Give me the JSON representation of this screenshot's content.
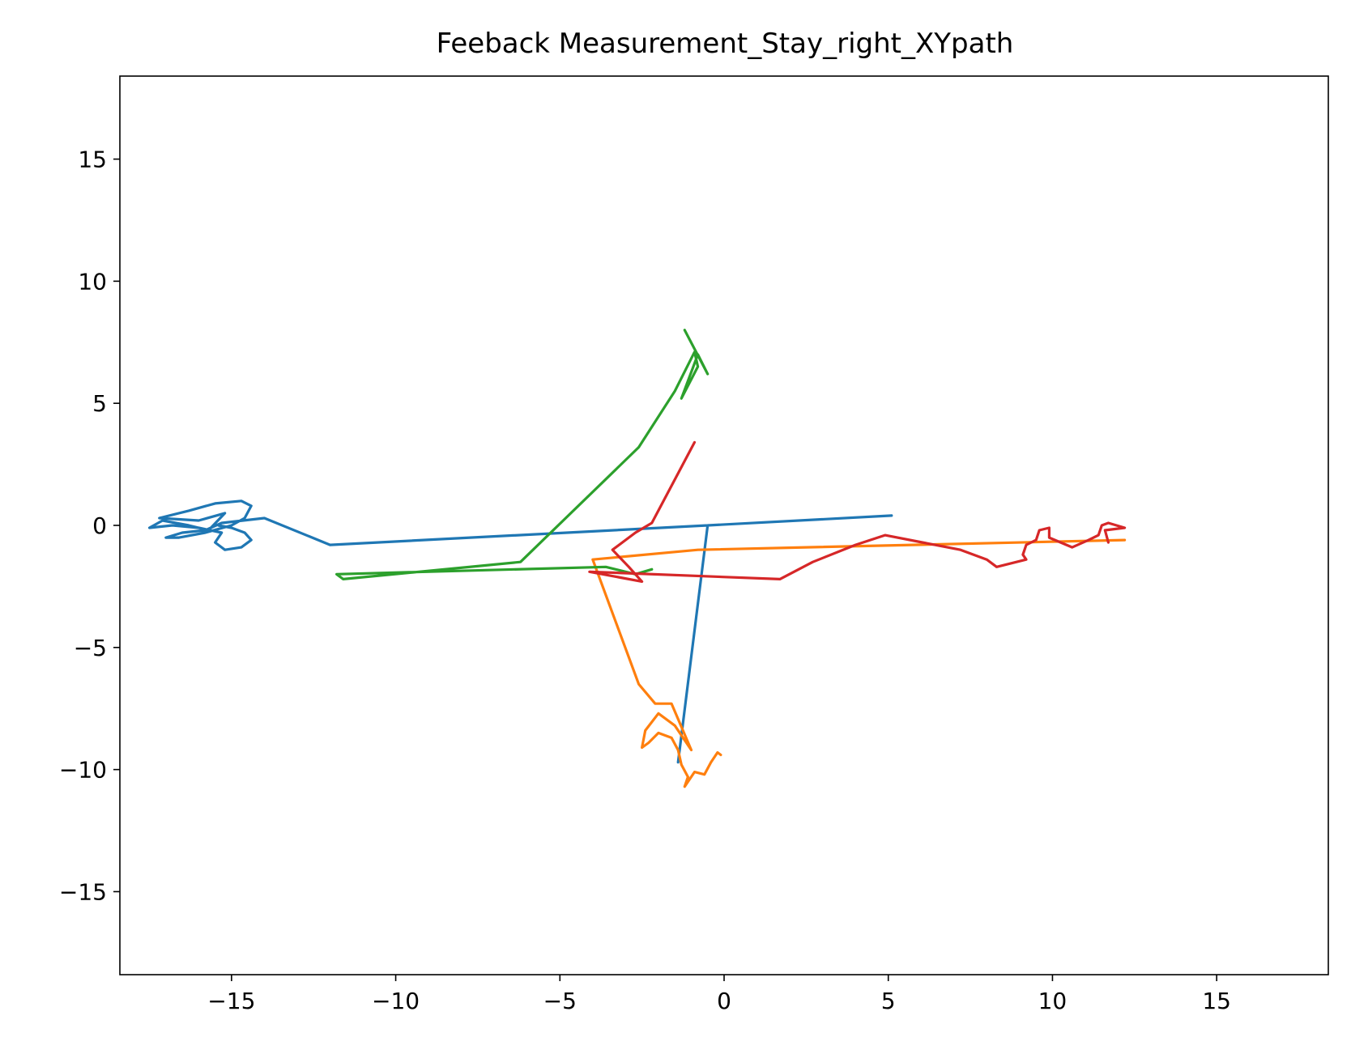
{
  "chart_data": {
    "type": "line",
    "title": "Feeback Measurement_Stay_right_XYpath",
    "xlabel": "",
    "ylabel": "",
    "xlim": [
      -18.4,
      18.4
    ],
    "ylim": [
      -18.4,
      18.4
    ],
    "xticks": [
      -15,
      -10,
      -5,
      0,
      5,
      10,
      15
    ],
    "yticks": [
      -15,
      -10,
      -5,
      0,
      5,
      10,
      15
    ],
    "xtick_labels": [
      "−15",
      "−10",
      "−5",
      "0",
      "5",
      "10",
      "15"
    ],
    "ytick_labels": [
      "−15",
      "−10",
      "−5",
      "0",
      "5",
      "10",
      "15"
    ],
    "grid": false,
    "series": [
      {
        "color": "#1f77b4",
        "points": [
          [
            5.1,
            0.4
          ],
          [
            -0.5,
            0
          ],
          [
            -1.4,
            -9.7
          ],
          [
            -0.5,
            0
          ],
          [
            -12,
            -0.8
          ],
          [
            -14,
            0.3
          ],
          [
            -15.3,
            0.1
          ],
          [
            -15.8,
            -0.2
          ],
          [
            -16.5,
            -0.3
          ],
          [
            -17,
            -0.5
          ],
          [
            -16.6,
            -0.5
          ],
          [
            -15.8,
            -0.3
          ],
          [
            -15,
            0
          ],
          [
            -14.6,
            0.3
          ],
          [
            -14.4,
            0.8
          ],
          [
            -14.7,
            1
          ],
          [
            -15.5,
            0.9
          ],
          [
            -16.3,
            0.6
          ],
          [
            -17.2,
            0.3
          ],
          [
            -16,
            0.2
          ],
          [
            -15.2,
            0.5
          ],
          [
            -15.7,
            -0.2
          ],
          [
            -16.3,
            0
          ],
          [
            -17.1,
            0.2
          ],
          [
            -17.5,
            -0.1
          ],
          [
            -16.8,
            0
          ],
          [
            -16,
            -0.1
          ],
          [
            -15.3,
            -0.3
          ],
          [
            -15.5,
            -0.7
          ],
          [
            -15.2,
            -1
          ],
          [
            -14.7,
            -0.9
          ],
          [
            -14.4,
            -0.6
          ],
          [
            -14.6,
            -0.3
          ],
          [
            -15,
            -0.1
          ],
          [
            -15.4,
            0
          ]
        ]
      },
      {
        "color": "#ff7f0e",
        "points": [
          [
            12.2,
            -0.6
          ],
          [
            -0.8,
            -1
          ],
          [
            -4,
            -1.4
          ],
          [
            -2.6,
            -6.5
          ],
          [
            -2.1,
            -7.3
          ],
          [
            -1.6,
            -7.3
          ],
          [
            -1,
            -9.2
          ],
          [
            -1.5,
            -8.2
          ],
          [
            -2,
            -7.7
          ],
          [
            -2.4,
            -8.4
          ],
          [
            -2.5,
            -9.1
          ],
          [
            -2.3,
            -8.9
          ],
          [
            -2,
            -8.5
          ],
          [
            -1.6,
            -8.7
          ],
          [
            -1.4,
            -9.2
          ],
          [
            -1.3,
            -9.8
          ],
          [
            -1.1,
            -10.3
          ],
          [
            -1.2,
            -10.7
          ],
          [
            -0.9,
            -10.1
          ],
          [
            -0.6,
            -10.2
          ],
          [
            -0.4,
            -9.7
          ],
          [
            -0.2,
            -9.3
          ],
          [
            -0.1,
            -9.4
          ]
        ]
      },
      {
        "color": "#2ca02c",
        "points": [
          [
            -1.2,
            8
          ],
          [
            -0.5,
            6.2
          ],
          [
            -0.8,
            7
          ],
          [
            -1.3,
            5.2
          ],
          [
            -0.8,
            6.5
          ],
          [
            -0.9,
            7.1
          ],
          [
            -1.5,
            5.5
          ],
          [
            -2.6,
            3.2
          ],
          [
            -6.2,
            -1.5
          ],
          [
            -11.6,
            -2.2
          ],
          [
            -11.8,
            -2
          ],
          [
            -3.6,
            -1.7
          ],
          [
            -2.7,
            -2
          ],
          [
            -2.2,
            -1.8
          ]
        ]
      },
      {
        "color": "#d62728",
        "points": [
          [
            -0.9,
            3.4
          ],
          [
            -2.2,
            0.1
          ],
          [
            -2.7,
            -0.3
          ],
          [
            -3.4,
            -1
          ],
          [
            -2.9,
            -1.7
          ],
          [
            -2.5,
            -2.3
          ],
          [
            -4.1,
            -1.9
          ],
          [
            1.7,
            -2.2
          ],
          [
            2.7,
            -1.5
          ],
          [
            4,
            -0.8
          ],
          [
            4.9,
            -0.4
          ],
          [
            7.2,
            -1
          ],
          [
            8,
            -1.4
          ],
          [
            8.3,
            -1.7
          ],
          [
            9.2,
            -1.4
          ],
          [
            9.1,
            -1.2
          ],
          [
            9.2,
            -0.8
          ],
          [
            9.5,
            -0.6
          ],
          [
            9.6,
            -0.2
          ],
          [
            9.9,
            -0.1
          ],
          [
            9.9,
            -0.5
          ],
          [
            10.6,
            -0.9
          ],
          [
            11.1,
            -0.6
          ],
          [
            11.4,
            -0.4
          ],
          [
            11.5,
            0
          ],
          [
            11.7,
            0.1
          ],
          [
            12.2,
            -0.1
          ],
          [
            11.6,
            -0.2
          ],
          [
            11.7,
            -0.7
          ]
        ]
      }
    ]
  }
}
